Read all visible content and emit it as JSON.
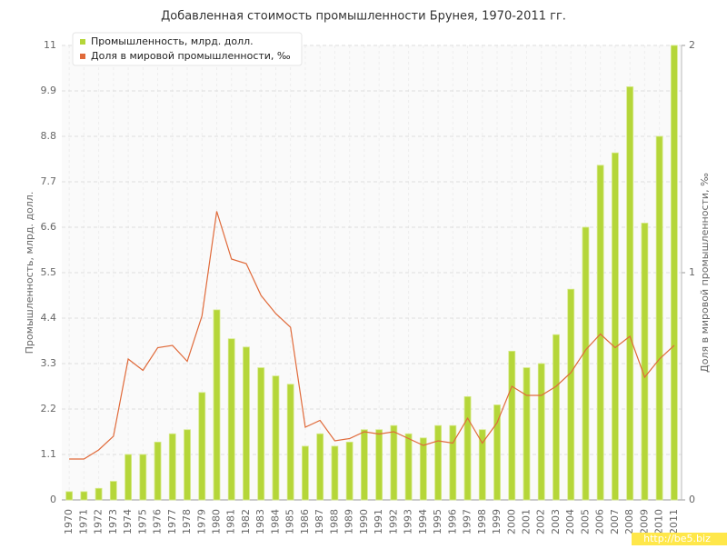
{
  "chart_data": {
    "type": "bar",
    "title": "Добавленная стоимость промышленности Брунея, 1970-2011 гг.",
    "y_label": "Промышленность, млрд. долл.",
    "y2_label": "Доля в мировой промышленности, ‰",
    "watermark": "http://be5.biz",
    "legend": "upper left",
    "grid": true,
    "categories": [
      "1970",
      "1971",
      "1972",
      "1973",
      "1974",
      "1975",
      "1976",
      "1977",
      "1978",
      "1979",
      "1980",
      "1981",
      "1982",
      "1983",
      "1984",
      "1985",
      "1986",
      "1987",
      "1988",
      "1989",
      "1990",
      "1991",
      "1992",
      "1993",
      "1994",
      "1995",
      "1996",
      "1997",
      "1998",
      "1999",
      "2000",
      "2001",
      "2002",
      "2003",
      "2004",
      "2005",
      "2006",
      "2007",
      "2008",
      "2009",
      "2010",
      "2011"
    ],
    "series": [
      {
        "name": "Промышленность, млрд. долл.",
        "type": "bar",
        "color": "#b5d639",
        "values": [
          0.2,
          0.2,
          0.28,
          0.45,
          1.1,
          1.1,
          1.4,
          1.6,
          1.7,
          2.6,
          4.6,
          3.9,
          3.7,
          3.2,
          3.0,
          2.8,
          1.3,
          1.6,
          1.3,
          1.4,
          1.7,
          1.7,
          1.8,
          1.6,
          1.5,
          1.8,
          1.8,
          2.5,
          1.7,
          2.3,
          3.6,
          3.2,
          3.3,
          4.0,
          5.1,
          6.6,
          8.1,
          8.4,
          10.0,
          6.7,
          8.8,
          11
        ]
      },
      {
        "name": "Доля в мировой промышленности, ‰",
        "type": "line",
        "axis": "y2",
        "color": "#e06a3a",
        "values": [
          0.18,
          0.18,
          0.22,
          0.28,
          0.62,
          0.57,
          0.67,
          0.68,
          0.61,
          0.81,
          1.27,
          1.06,
          1.04,
          0.9,
          0.82,
          0.76,
          0.32,
          0.35,
          0.26,
          0.27,
          0.3,
          0.29,
          0.3,
          0.27,
          0.24,
          0.26,
          0.25,
          0.36,
          0.25,
          0.34,
          0.5,
          0.46,
          0.46,
          0.5,
          0.56,
          0.66,
          0.73,
          0.67,
          0.72,
          0.54,
          0.62,
          0.68
        ]
      }
    ],
    "ylim": [
      0,
      11
    ],
    "yticks": [
      0,
      1.1,
      2.2,
      3.3,
      4.4,
      5.5,
      6.6,
      7.7,
      8.8,
      9.9,
      11
    ],
    "y2lim": [
      0,
      2
    ],
    "y2ticks": [
      0,
      1,
      2
    ]
  }
}
